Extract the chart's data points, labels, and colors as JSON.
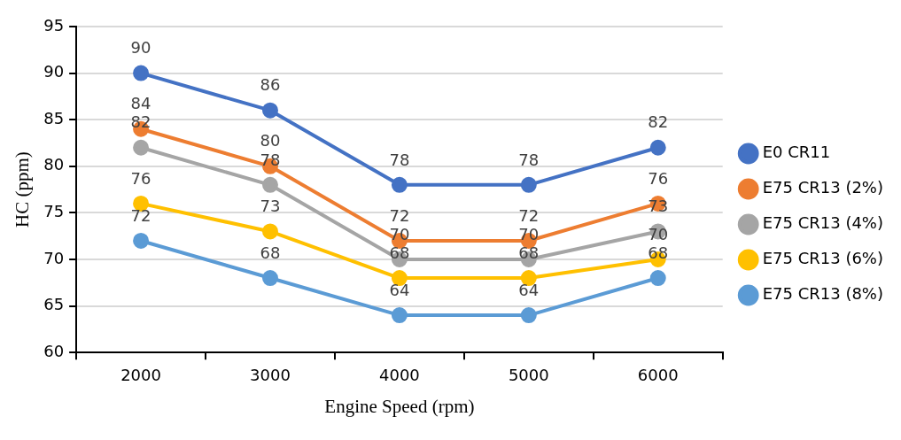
{
  "chart_data": {
    "type": "line",
    "xlabel": "Engine Speed (rpm)",
    "ylabel": "HC (ppm)",
    "categories": [
      "2000",
      "3000",
      "4000",
      "5000",
      "6000"
    ],
    "series": [
      {
        "name": "E0 CR11",
        "color": "#4472c4",
        "values": [
          90,
          86,
          78,
          78,
          82
        ]
      },
      {
        "name": "E75 CR13 (2%)",
        "color": "#ed7d31",
        "values": [
          84,
          80,
          72,
          72,
          76
        ]
      },
      {
        "name": "E75 CR13 (4%)",
        "color": "#a5a5a5",
        "values": [
          82,
          78,
          70,
          70,
          73
        ]
      },
      {
        "name": "E75 CR13 (6%)",
        "color": "#ffc000",
        "values": [
          76,
          73,
          68,
          68,
          70
        ]
      },
      {
        "name": "E75 CR13 (8%)",
        "color": "#5b9bd5",
        "values": [
          72,
          68,
          64,
          64,
          68
        ]
      }
    ],
    "ylim": [
      60,
      95
    ],
    "yticks": [
      60,
      65,
      70,
      75,
      80,
      85,
      90,
      95
    ],
    "grid": "y",
    "legend": "right",
    "marker": "circle",
    "line_style": "solid",
    "data_labels": true
  }
}
